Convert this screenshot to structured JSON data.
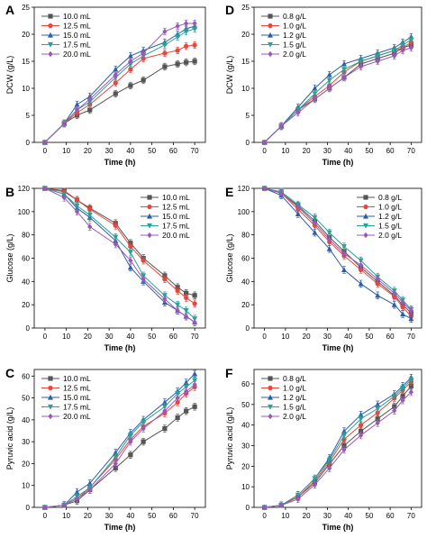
{
  "chart_data": [
    {
      "panel": "A",
      "type": "line",
      "xlabel": "Time (h)",
      "ylabel": "DCW (g/L)",
      "xlim": [
        -5,
        75
      ],
      "ylim": [
        0,
        25
      ],
      "xticks": [
        0,
        10,
        20,
        30,
        40,
        50,
        60,
        70
      ],
      "yticks": [
        0,
        5,
        10,
        15,
        20,
        25
      ],
      "legend_position": "top-left",
      "series": [
        {
          "name": "10.0 mL",
          "color": "#555555",
          "marker": "square",
          "x": [
            0,
            9,
            15,
            21,
            33,
            40,
            46,
            56,
            62,
            66,
            70
          ],
          "y": [
            0,
            3.5,
            5.0,
            6.0,
            9.0,
            10.5,
            11.5,
            14.0,
            14.5,
            14.8,
            15.0
          ]
        },
        {
          "name": "12.5 mL",
          "color": "#e8463c",
          "marker": "circle",
          "x": [
            0,
            9,
            15,
            21,
            33,
            40,
            46,
            56,
            62,
            66,
            70
          ],
          "y": [
            0,
            3.5,
            5.5,
            7.0,
            11.0,
            13.5,
            15.5,
            16.5,
            17.0,
            17.8,
            18.0
          ]
        },
        {
          "name": "15.0 mL",
          "color": "#2b5ea8",
          "marker": "triangle",
          "x": [
            0,
            9,
            15,
            21,
            33,
            40,
            46,
            56,
            62,
            66,
            70
          ],
          "y": [
            0,
            3.5,
            7.0,
            8.5,
            13.5,
            16.0,
            17.0,
            18.5,
            20.0,
            21.0,
            21.5
          ]
        },
        {
          "name": "17.5 mL",
          "color": "#2aa198",
          "marker": "triangle-down",
          "x": [
            0,
            9,
            15,
            21,
            33,
            40,
            46,
            56,
            62,
            66,
            70
          ],
          "y": [
            0,
            3.5,
            6.0,
            7.5,
            12.0,
            14.5,
            16.0,
            18.0,
            19.5,
            20.5,
            21.0
          ]
        },
        {
          "name": "20.0 mL",
          "color": "#9b59b6",
          "marker": "diamond",
          "x": [
            0,
            9,
            15,
            21,
            33,
            40,
            46,
            56,
            62,
            66,
            70
          ],
          "y": [
            0,
            3.5,
            6.0,
            8.0,
            12.5,
            15.0,
            16.5,
            20.5,
            21.5,
            22.0,
            22.0
          ]
        }
      ]
    },
    {
      "panel": "D",
      "type": "line",
      "xlabel": "Time (h)",
      "ylabel": "DCW (g/L)",
      "xlim": [
        -5,
        75
      ],
      "ylim": [
        0,
        25
      ],
      "xticks": [
        0,
        10,
        20,
        30,
        40,
        50,
        60,
        70
      ],
      "yticks": [
        0,
        5,
        10,
        15,
        20,
        25
      ],
      "legend_position": "top-left",
      "series": [
        {
          "name": "0.8 g/L",
          "color": "#555555",
          "marker": "square",
          "x": [
            0,
            8,
            16,
            24,
            31,
            38,
            46,
            54,
            62,
            66,
            70
          ],
          "y": [
            0,
            3.0,
            6.0,
            8.0,
            10.0,
            12.0,
            14.5,
            15.5,
            16.5,
            17.5,
            18.0
          ]
        },
        {
          "name": "1.0 g/L",
          "color": "#e8463c",
          "marker": "circle",
          "x": [
            0,
            8,
            16,
            24,
            31,
            38,
            46,
            54,
            62,
            66,
            70
          ],
          "y": [
            0,
            3.0,
            6.0,
            8.5,
            10.5,
            13.0,
            15.0,
            16.0,
            17.0,
            17.5,
            18.5
          ]
        },
        {
          "name": "1.2 g/L",
          "color": "#2b5ea8",
          "marker": "triangle",
          "x": [
            0,
            8,
            16,
            24,
            31,
            38,
            46,
            54,
            62,
            66,
            70
          ],
          "y": [
            0,
            3.0,
            6.5,
            10.0,
            12.5,
            14.5,
            15.5,
            16.5,
            17.5,
            18.5,
            19.5
          ]
        },
        {
          "name": "1.5 g/L",
          "color": "#2aa198",
          "marker": "triangle-down",
          "x": [
            0,
            8,
            16,
            24,
            31,
            38,
            46,
            54,
            62,
            66,
            70
          ],
          "y": [
            0,
            3.0,
            6.0,
            9.0,
            11.5,
            13.5,
            15.0,
            16.0,
            17.0,
            18.0,
            19.0
          ]
        },
        {
          "name": "2.0 g/L",
          "color": "#9b59b6",
          "marker": "diamond",
          "x": [
            0,
            8,
            16,
            24,
            31,
            38,
            46,
            54,
            62,
            66,
            70
          ],
          "y": [
            0,
            3.0,
            5.5,
            8.0,
            10.0,
            12.0,
            14.0,
            15.0,
            16.0,
            17.0,
            17.5
          ]
        }
      ]
    },
    {
      "panel": "B",
      "type": "line",
      "xlabel": "Time (h)",
      "ylabel": "Glucose (g/L)",
      "xlim": [
        -5,
        75
      ],
      "ylim": [
        0,
        120
      ],
      "xticks": [
        0,
        10,
        20,
        30,
        40,
        50,
        60,
        70
      ],
      "yticks": [
        0,
        20,
        40,
        60,
        80,
        100,
        120
      ],
      "legend_position": "top-right",
      "series": [
        {
          "name": "10.0 mL",
          "color": "#555555",
          "marker": "square",
          "x": [
            0,
            9,
            15,
            21,
            33,
            40,
            46,
            56,
            62,
            66,
            70
          ],
          "y": [
            120,
            118,
            110,
            103,
            90,
            73,
            60,
            45,
            35,
            30,
            28
          ]
        },
        {
          "name": "12.5 mL",
          "color": "#e8463c",
          "marker": "circle",
          "x": [
            0,
            9,
            15,
            21,
            33,
            40,
            46,
            56,
            62,
            66,
            70
          ],
          "y": [
            120,
            117,
            110,
            102,
            88,
            70,
            58,
            42,
            32,
            26,
            21
          ]
        },
        {
          "name": "15.0 mL",
          "color": "#2b5ea8",
          "marker": "triangle",
          "x": [
            0,
            9,
            15,
            21,
            33,
            40,
            46,
            56,
            62,
            66,
            70
          ],
          "y": [
            120,
            115,
            103,
            95,
            75,
            52,
            40,
            22,
            15,
            10,
            5
          ]
        },
        {
          "name": "17.5 mL",
          "color": "#2aa198",
          "marker": "triangle-down",
          "x": [
            0,
            9,
            15,
            21,
            33,
            40,
            46,
            56,
            62,
            66,
            70
          ],
          "y": [
            120,
            115,
            105,
            97,
            78,
            65,
            45,
            28,
            20,
            15,
            8
          ]
        },
        {
          "name": "20.0 mL",
          "color": "#9b59b6",
          "marker": "diamond",
          "x": [
            0,
            9,
            15,
            21,
            33,
            40,
            46,
            56,
            62,
            66,
            70
          ],
          "y": [
            120,
            112,
            100,
            87,
            72,
            58,
            42,
            25,
            15,
            10,
            5
          ]
        }
      ]
    },
    {
      "panel": "E",
      "type": "line",
      "xlabel": "Time (h)",
      "ylabel": "Glucose (g/L)",
      "xlim": [
        -5,
        75
      ],
      "ylim": [
        0,
        120
      ],
      "xticks": [
        0,
        10,
        20,
        30,
        40,
        50,
        60,
        70
      ],
      "yticks": [
        0,
        20,
        40,
        60,
        80,
        100,
        120
      ],
      "legend_position": "top-right",
      "series": [
        {
          "name": "0.8 g/L",
          "color": "#555555",
          "marker": "square",
          "x": [
            0,
            8,
            16,
            24,
            31,
            38,
            46,
            54,
            62,
            66,
            70
          ],
          "y": [
            120,
            116,
            105,
            92,
            78,
            66,
            52,
            40,
            28,
            20,
            13
          ]
        },
        {
          "name": "1.0 g/L",
          "color": "#e8463c",
          "marker": "circle",
          "x": [
            0,
            8,
            16,
            24,
            31,
            38,
            46,
            54,
            62,
            66,
            70
          ],
          "y": [
            120,
            116,
            102,
            88,
            74,
            62,
            50,
            38,
            27,
            18,
            10
          ]
        },
        {
          "name": "1.2 g/L",
          "color": "#2b5ea8",
          "marker": "triangle",
          "x": [
            0,
            8,
            16,
            24,
            31,
            38,
            46,
            54,
            62,
            66,
            70
          ],
          "y": [
            120,
            114,
            98,
            82,
            68,
            50,
            38,
            28,
            20,
            12,
            8
          ]
        },
        {
          "name": "1.5 g/L",
          "color": "#2aa198",
          "marker": "triangle-down",
          "x": [
            0,
            8,
            16,
            24,
            31,
            38,
            46,
            54,
            62,
            66,
            70
          ],
          "y": [
            120,
            117,
            106,
            95,
            82,
            70,
            58,
            44,
            32,
            24,
            16
          ]
        },
        {
          "name": "2.0 g/L",
          "color": "#9b59b6",
          "marker": "diamond",
          "x": [
            0,
            8,
            16,
            24,
            31,
            38,
            46,
            54,
            62,
            66,
            70
          ],
          "y": [
            120,
            116,
            104,
            90,
            76,
            64,
            54,
            42,
            30,
            22,
            15
          ]
        }
      ]
    },
    {
      "panel": "C",
      "type": "line",
      "xlabel": "Time (h)",
      "ylabel": "Pyruvic acid (g/L)",
      "xlim": [
        -5,
        75
      ],
      "ylim": [
        0,
        63
      ],
      "xticks": [
        0,
        10,
        20,
        30,
        40,
        50,
        60,
        70
      ],
      "yticks": [
        0,
        10,
        20,
        30,
        40,
        50,
        60
      ],
      "legend_position": "top-left",
      "series": [
        {
          "name": "10.0 mL",
          "color": "#555555",
          "marker": "square",
          "x": [
            0,
            9,
            15,
            21,
            33,
            40,
            46,
            56,
            62,
            66,
            70
          ],
          "y": [
            0,
            1,
            3,
            8,
            18,
            24,
            30,
            36,
            41,
            44,
            46
          ]
        },
        {
          "name": "12.5 mL",
          "color": "#e8463c",
          "marker": "circle",
          "x": [
            0,
            9,
            15,
            21,
            33,
            40,
            46,
            56,
            62,
            66,
            70
          ],
          "y": [
            0,
            1,
            4,
            9,
            22,
            31,
            37,
            43,
            48,
            52,
            55
          ]
        },
        {
          "name": "15.0 mL",
          "color": "#2b5ea8",
          "marker": "triangle",
          "x": [
            0,
            9,
            15,
            21,
            33,
            40,
            46,
            56,
            62,
            66,
            70
          ],
          "y": [
            0,
            1,
            7,
            11,
            25,
            34,
            40,
            48,
            53,
            57,
            61
          ]
        },
        {
          "name": "17.5 mL",
          "color": "#2aa198",
          "marker": "triangle-down",
          "x": [
            0,
            9,
            15,
            21,
            33,
            40,
            46,
            56,
            62,
            66,
            70
          ],
          "y": [
            0,
            1,
            5,
            9,
            23,
            33,
            39,
            46,
            52,
            55,
            58
          ]
        },
        {
          "name": "20.0 mL",
          "color": "#9b59b6",
          "marker": "diamond",
          "x": [
            0,
            9,
            15,
            21,
            33,
            40,
            46,
            56,
            62,
            66,
            70
          ],
          "y": [
            0,
            1,
            4,
            8,
            20,
            30,
            36,
            44,
            50,
            53,
            56
          ]
        }
      ]
    },
    {
      "panel": "F",
      "type": "line",
      "xlabel": "Time (h)",
      "ylabel": "Pyruvic acid (g/L)",
      "xlim": [
        -5,
        75
      ],
      "ylim": [
        0,
        67
      ],
      "xticks": [
        0,
        10,
        20,
        30,
        40,
        50,
        60,
        70
      ],
      "yticks": [
        0,
        10,
        20,
        30,
        40,
        50,
        60
      ],
      "legend_position": "top-left",
      "series": [
        {
          "name": "0.8 g/L",
          "color": "#555555",
          "marker": "square",
          "x": [
            0,
            8,
            16,
            24,
            31,
            38,
            46,
            54,
            62,
            66,
            70
          ],
          "y": [
            0,
            1,
            5,
            12,
            21,
            30,
            37,
            43,
            49,
            54,
            59
          ]
        },
        {
          "name": "1.0 g/L",
          "color": "#e8463c",
          "marker": "circle",
          "x": [
            0,
            8,
            16,
            24,
            31,
            38,
            46,
            54,
            62,
            66,
            70
          ],
          "y": [
            0,
            1,
            5,
            13,
            22,
            33,
            40,
            46,
            53,
            57,
            61
          ]
        },
        {
          "name": "1.2 g/L",
          "color": "#2b5ea8",
          "marker": "triangle",
          "x": [
            0,
            8,
            16,
            24,
            31,
            38,
            46,
            54,
            62,
            66,
            70
          ],
          "y": [
            0,
            1,
            6,
            14,
            24,
            37,
            45,
            50,
            55,
            59,
            63
          ]
        },
        {
          "name": "1.5 g/L",
          "color": "#2aa198",
          "marker": "triangle-down",
          "x": [
            0,
            8,
            16,
            24,
            31,
            38,
            46,
            54,
            62,
            66,
            70
          ],
          "y": [
            0,
            1,
            6,
            14,
            23,
            35,
            43,
            48,
            54,
            58,
            62
          ]
        },
        {
          "name": "2.0 g/L",
          "color": "#9b59b6",
          "marker": "diamond",
          "x": [
            0,
            8,
            16,
            24,
            31,
            38,
            46,
            54,
            62,
            66,
            70
          ],
          "y": [
            0,
            1,
            4,
            11,
            19,
            28,
            35,
            41,
            47,
            52,
            56
          ]
        }
      ]
    }
  ]
}
